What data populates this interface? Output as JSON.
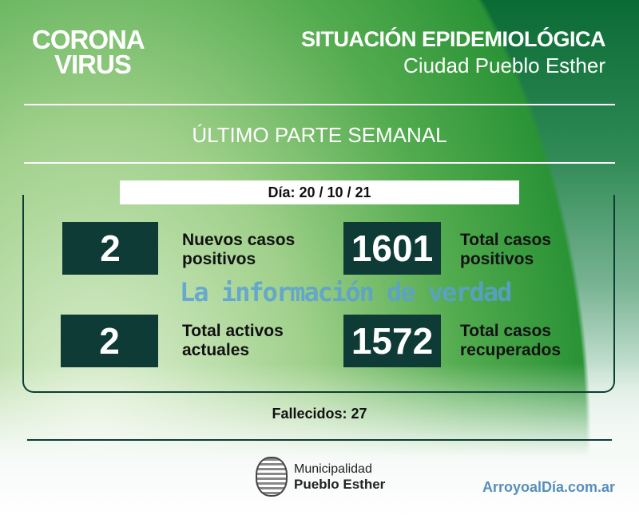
{
  "logo": {
    "line1": "CORONA",
    "line2": "VIRUS"
  },
  "header": {
    "title": "SITUACIÓN EPIDEMIOLÓGICA",
    "subtitle": "Ciudad Pueblo Esther"
  },
  "section_title": "ÚLTIMO PARTE SEMANAL",
  "date": "Día: 20 / 10 / 21",
  "stats": [
    {
      "value": "2",
      "label_l1": "Nuevos casos",
      "label_l2": "positivos"
    },
    {
      "value": "1601",
      "label_l1": "Total casos",
      "label_l2": "positivos"
    },
    {
      "value": "2",
      "label_l1": "Total activos",
      "label_l2": "actuales"
    },
    {
      "value": "1572",
      "label_l1": "Total casos",
      "label_l2": "recuperados"
    }
  ],
  "deaths": "Fallecidos: 27",
  "watermark": {
    "brand": "ArroyoalDía.com.ar",
    "tagline": "La información de verdad"
  },
  "footer": {
    "line1": "Municipalidad",
    "line2": "Pueblo Esther"
  },
  "colors": {
    "dark_green": "#0b6b35",
    "box": "#0e3b36",
    "light_green": "#53ab4f"
  }
}
